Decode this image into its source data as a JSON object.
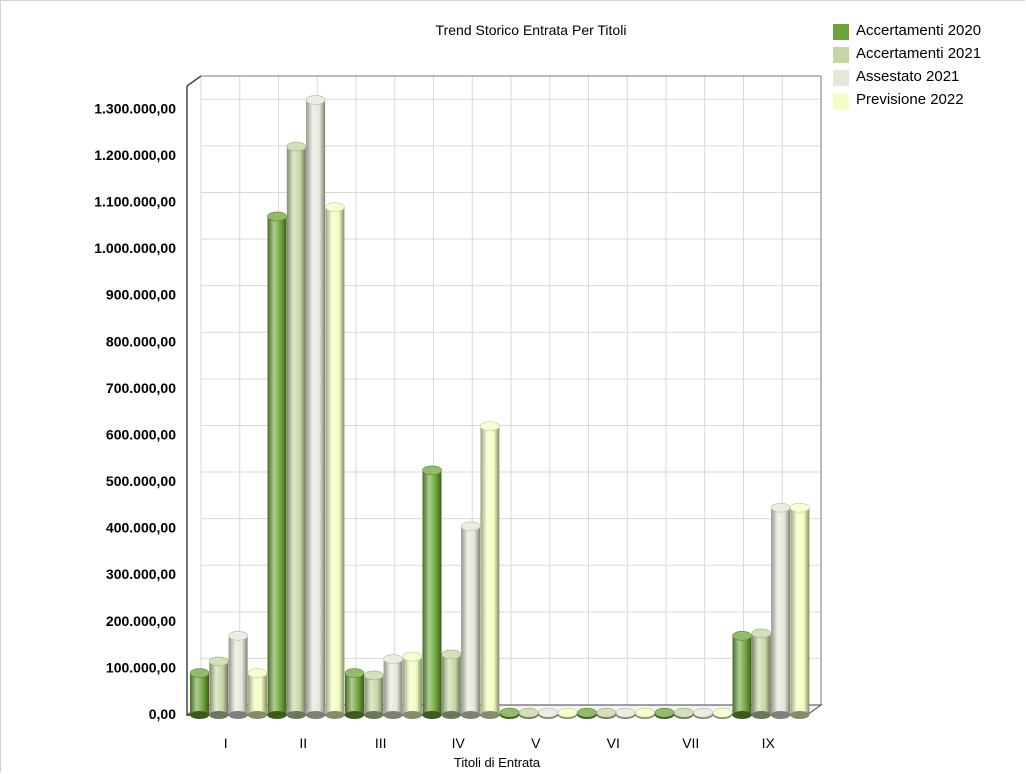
{
  "chart_data": {
    "type": "bar",
    "title": "Trend Storico Entrata Per Titoli",
    "xlabel": "Titoli di Entrata",
    "ylabel": "",
    "categories": [
      "I",
      "II",
      "III",
      "IV",
      "V",
      "VI",
      "VII",
      "IX"
    ],
    "y_ticks": [
      "0,00",
      "100.000,00",
      "200.000,00",
      "300.000,00",
      "400.000,00",
      "500.000,00",
      "600.000,00",
      "700.000,00",
      "800.000,00",
      "900.000,00",
      "1.000.000,00",
      "1.100.000,00",
      "1.200.000,00",
      "1.300.000,00"
    ],
    "ylim": [
      0,
      1350000
    ],
    "grid": true,
    "legend_position": "top-right",
    "series": [
      {
        "name": "Accertamenti 2020",
        "color": "#6ea53a",
        "values": [
          90000,
          1070000,
          90000,
          525000,
          5000,
          5000,
          5000,
          170000
        ]
      },
      {
        "name": "Accertamenti 2021",
        "color": "#c5d6a3",
        "values": [
          115000,
          1220000,
          85000,
          130000,
          5000,
          5000,
          5000,
          175000
        ]
      },
      {
        "name": "Assestato 2021",
        "color": "#e3e8d8",
        "values": [
          170000,
          1320000,
          120000,
          405000,
          5000,
          5000,
          5000,
          445000
        ]
      },
      {
        "name": "Previsione 2022",
        "color": "#f2ffc0",
        "values": [
          90000,
          1090000,
          125000,
          620000,
          5000,
          5000,
          5000,
          445000
        ]
      }
    ]
  }
}
